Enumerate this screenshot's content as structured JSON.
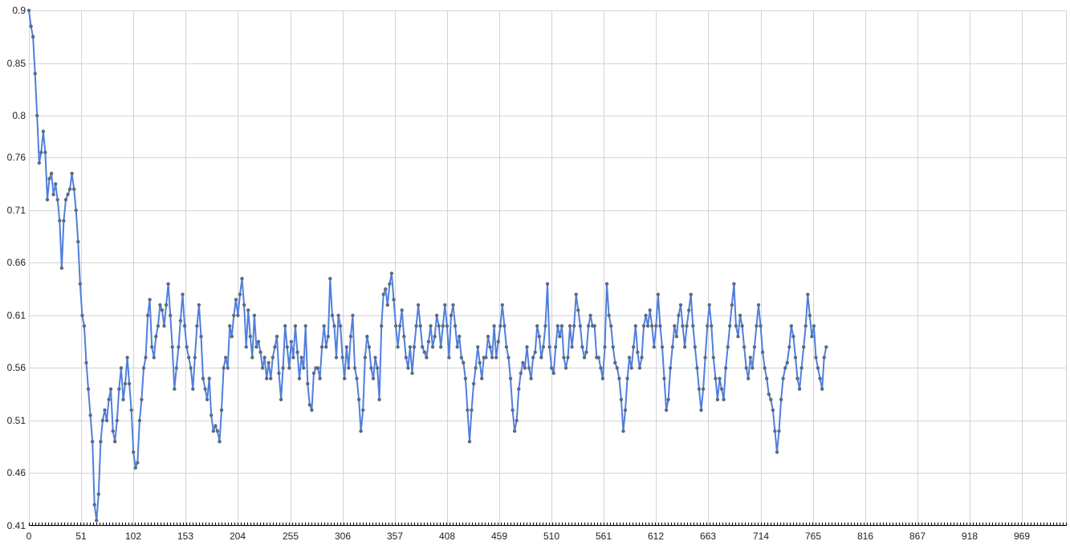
{
  "chart_data": {
    "type": "line",
    "title": "",
    "xlabel": "",
    "ylabel": "",
    "grid": true,
    "legend": "none",
    "xlim": [
      0,
      1012
    ],
    "ylim": [
      0.41,
      0.9
    ],
    "x_ticks": [
      0,
      51,
      102,
      153,
      204,
      255,
      306,
      357,
      408,
      459,
      510,
      561,
      612,
      663,
      714,
      765,
      816,
      867,
      918,
      969
    ],
    "y_ticks": [
      "0.41",
      "0.46",
      "0.51",
      "0.56",
      "0.61",
      "0.66",
      "0.71",
      "0.76",
      "0.8",
      "0.85",
      "0.9"
    ],
    "line_color": "#4f7fdf",
    "point_color": "#5f6a7a",
    "series": [
      {
        "x_start": 0,
        "x_step": 2,
        "values": [
          0.9,
          0.885,
          0.875,
          0.84,
          0.8,
          0.755,
          0.765,
          0.785,
          0.765,
          0.72,
          0.74,
          0.745,
          0.725,
          0.735,
          0.72,
          0.7,
          0.655,
          0.7,
          0.72,
          0.725,
          0.73,
          0.745,
          0.73,
          0.71,
          0.68,
          0.64,
          0.61,
          0.6,
          0.565,
          0.54,
          0.515,
          0.49,
          0.43,
          0.415,
          0.44,
          0.49,
          0.51,
          0.52,
          0.51,
          0.53,
          0.54,
          0.5,
          0.49,
          0.51,
          0.54,
          0.56,
          0.53,
          0.545,
          0.57,
          0.545,
          0.52,
          0.48,
          0.465,
          0.47,
          0.51,
          0.53,
          0.56,
          0.57,
          0.61,
          0.625,
          0.58,
          0.57,
          0.59,
          0.6,
          0.62,
          0.615,
          0.6,
          0.62,
          0.64,
          0.61,
          0.58,
          0.54,
          0.56,
          0.58,
          0.605,
          0.63,
          0.6,
          0.58,
          0.57,
          0.56,
          0.54,
          0.57,
          0.6,
          0.62,
          0.59,
          0.55,
          0.54,
          0.53,
          0.55,
          0.515,
          0.5,
          0.505,
          0.5,
          0.49,
          0.52,
          0.56,
          0.57,
          0.56,
          0.6,
          0.59,
          0.61,
          0.625,
          0.61,
          0.63,
          0.645,
          0.62,
          0.58,
          0.615,
          0.59,
          0.57,
          0.61,
          0.58,
          0.585,
          0.575,
          0.56,
          0.57,
          0.55,
          0.565,
          0.55,
          0.57,
          0.58,
          0.59,
          0.555,
          0.53,
          0.56,
          0.6,
          0.58,
          0.56,
          0.585,
          0.57,
          0.6,
          0.575,
          0.55,
          0.57,
          0.56,
          0.6,
          0.545,
          0.525,
          0.52,
          0.555,
          0.56,
          0.56,
          0.55,
          0.58,
          0.6,
          0.58,
          0.59,
          0.645,
          0.61,
          0.6,
          0.57,
          0.61,
          0.6,
          0.57,
          0.55,
          0.58,
          0.56,
          0.59,
          0.61,
          0.56,
          0.55,
          0.53,
          0.5,
          0.52,
          0.57,
          0.59,
          0.58,
          0.56,
          0.55,
          0.57,
          0.56,
          0.53,
          0.6,
          0.63,
          0.635,
          0.62,
          0.64,
          0.65,
          0.625,
          0.6,
          0.58,
          0.6,
          0.615,
          0.59,
          0.57,
          0.56,
          0.58,
          0.555,
          0.58,
          0.6,
          0.62,
          0.6,
          0.58,
          0.575,
          0.57,
          0.585,
          0.6,
          0.58,
          0.59,
          0.61,
          0.6,
          0.58,
          0.6,
          0.62,
          0.6,
          0.57,
          0.61,
          0.62,
          0.6,
          0.58,
          0.59,
          0.57,
          0.565,
          0.55,
          0.52,
          0.49,
          0.52,
          0.545,
          0.56,
          0.58,
          0.565,
          0.55,
          0.57,
          0.57,
          0.59,
          0.58,
          0.57,
          0.6,
          0.57,
          0.585,
          0.6,
          0.62,
          0.6,
          0.58,
          0.57,
          0.55,
          0.52,
          0.5,
          0.51,
          0.54,
          0.555,
          0.565,
          0.56,
          0.58,
          0.56,
          0.55,
          0.57,
          0.575,
          0.6,
          0.59,
          0.57,
          0.58,
          0.6,
          0.64,
          0.58,
          0.56,
          0.555,
          0.58,
          0.6,
          0.59,
          0.6,
          0.57,
          0.56,
          0.57,
          0.6,
          0.58,
          0.6,
          0.63,
          0.615,
          0.6,
          0.58,
          0.57,
          0.575,
          0.6,
          0.61,
          0.6,
          0.6,
          0.57,
          0.57,
          0.56,
          0.55,
          0.58,
          0.64,
          0.61,
          0.6,
          0.58,
          0.565,
          0.56,
          0.55,
          0.53,
          0.5,
          0.52,
          0.55,
          0.57,
          0.56,
          0.58,
          0.6,
          0.575,
          0.56,
          0.57,
          0.6,
          0.61,
          0.6,
          0.615,
          0.6,
          0.58,
          0.6,
          0.63,
          0.6,
          0.58,
          0.55,
          0.52,
          0.53,
          0.56,
          0.58,
          0.6,
          0.59,
          0.61,
          0.62,
          0.6,
          0.58,
          0.6,
          0.615,
          0.63,
          0.6,
          0.58,
          0.56,
          0.54,
          0.52,
          0.54,
          0.57,
          0.6,
          0.62,
          0.6,
          0.57,
          0.55,
          0.53,
          0.55,
          0.54,
          0.53,
          0.56,
          0.58,
          0.6,
          0.62,
          0.64,
          0.6,
          0.59,
          0.61,
          0.6,
          0.58,
          0.56,
          0.55,
          0.57,
          0.56,
          0.58,
          0.6,
          0.62,
          0.6,
          0.575,
          0.56,
          0.55,
          0.535,
          0.53,
          0.52,
          0.5,
          0.48,
          0.5,
          0.53,
          0.55,
          0.56,
          0.565,
          0.58,
          0.6,
          0.59,
          0.57,
          0.55,
          0.54,
          0.56,
          0.58,
          0.6,
          0.63,
          0.61,
          0.59,
          0.6,
          0.57,
          0.56,
          0.55,
          0.54,
          0.57,
          0.58
        ]
      }
    ]
  }
}
